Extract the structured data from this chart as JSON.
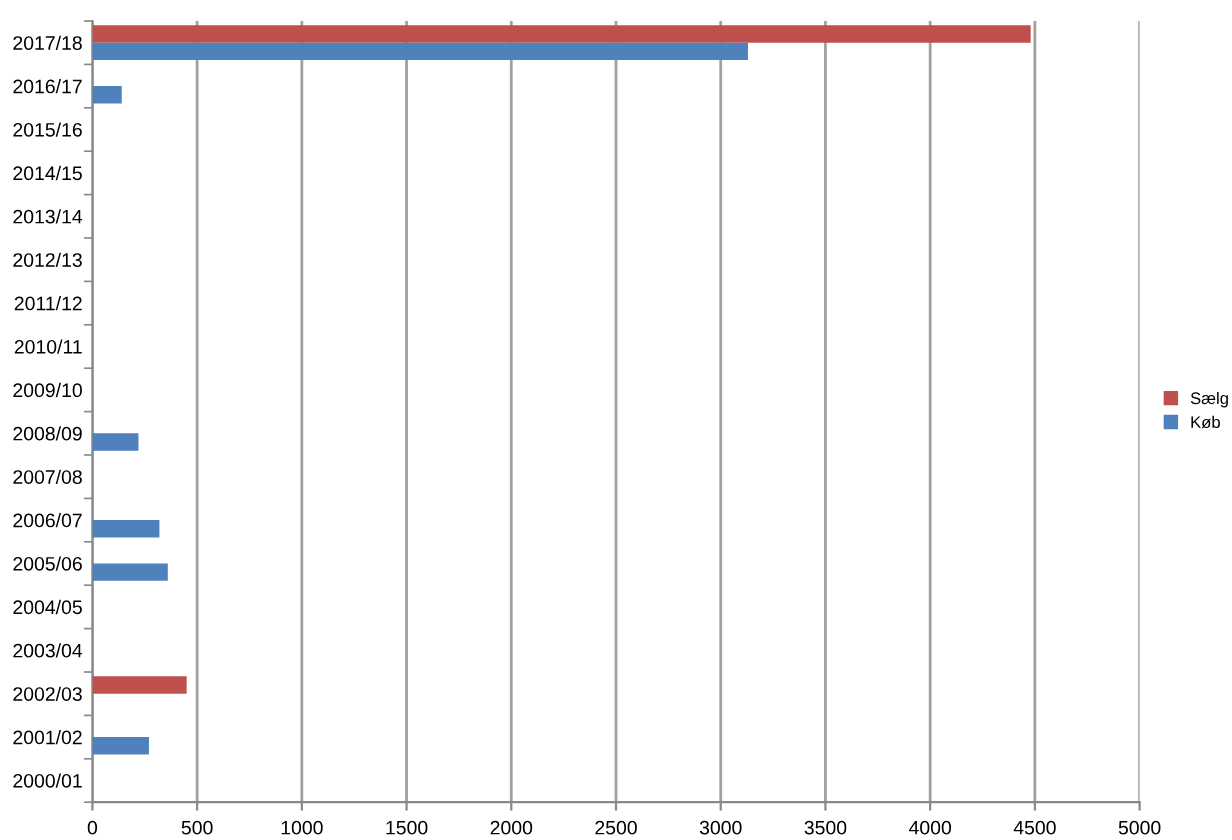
{
  "chart_data": {
    "type": "bar",
    "orientation": "horizontal",
    "categories": [
      "2017/18",
      "2016/17",
      "2015/16",
      "2014/15",
      "2013/14",
      "2012/13",
      "2011/12",
      "2010/11",
      "2009/10",
      "2008/09",
      "2007/08",
      "2006/07",
      "2005/06",
      "2004/05",
      "2003/04",
      "2002/03",
      "2001/02",
      "2000/01"
    ],
    "series": [
      {
        "name": "Sælg",
        "color": "#c0504d",
        "values": [
          4480,
          null,
          null,
          null,
          null,
          null,
          null,
          null,
          null,
          null,
          null,
          null,
          null,
          null,
          null,
          450,
          null,
          null
        ]
      },
      {
        "name": "Køb",
        "color": "#4f81bd",
        "values": [
          3130,
          140,
          null,
          null,
          null,
          null,
          null,
          null,
          null,
          220,
          null,
          320,
          360,
          null,
          null,
          null,
          270,
          null
        ]
      }
    ],
    "xlim": [
      0,
      5000
    ],
    "xticks": [
      0,
      500,
      1000,
      1500,
      2000,
      2500,
      3000,
      3500,
      4000,
      4500,
      5000
    ],
    "grid": "x",
    "legend": "right"
  }
}
